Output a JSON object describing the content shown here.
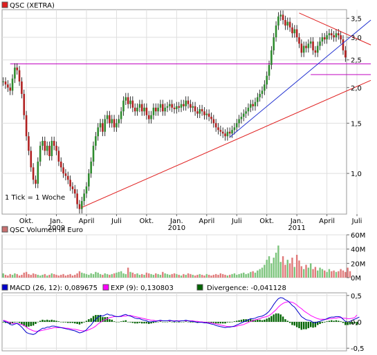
{
  "colors": {
    "panel_border": "#9a9a9a",
    "grid": "#dedede",
    "candle_up": "#2e8b2e",
    "candle_down": "#b02020",
    "wick": "#000000",
    "trend_red": "#e02020",
    "trend_blue": "#2030d0",
    "support_magenta": "#c000c0",
    "vol_up": "#7cc47c",
    "vol_down": "#e07a7a",
    "macd_line": "#0000cc",
    "exp_line": "#ff00ff",
    "divergence": "#006400"
  },
  "chart_data": [
    {
      "type": "candlestick",
      "title": "QSC (XETRA)",
      "legend_color": "#e02020",
      "note": "1 Tick = 1 Woche",
      "ylim": [
        0.72,
        3.75
      ],
      "yscale": "log",
      "y_ticks": [
        "3,5",
        "3,0",
        "2,5",
        "2,0",
        "1,5",
        "1,0"
      ],
      "y_tick_values": [
        3.5,
        3.0,
        2.5,
        2.0,
        1.5,
        1.0
      ],
      "x_ticks": [
        {
          "label": "Okt.",
          "year": "",
          "week": 10
        },
        {
          "label": "Jan.",
          "year": "2009",
          "week": 23
        },
        {
          "label": "April",
          "year": "",
          "week": 36
        },
        {
          "label": "Juli",
          "year": "",
          "week": 49
        },
        {
          "label": "Okt.",
          "year": "",
          "week": 62
        },
        {
          "label": "Jan.",
          "year": "2010",
          "week": 75
        },
        {
          "label": "April",
          "year": "",
          "week": 88
        },
        {
          "label": "Juli",
          "year": "",
          "week": 101
        },
        {
          "label": "Okt.",
          "year": "",
          "week": 114
        },
        {
          "label": "Jan.",
          "year": "2011",
          "week": 127
        },
        {
          "label": "April",
          "year": "",
          "week": 140
        },
        {
          "label": "Juli",
          "year": "",
          "week": 153
        }
      ],
      "weekly_close": [
        2.1,
        2.05,
        2.0,
        1.95,
        2.15,
        2.35,
        2.3,
        2.1,
        1.9,
        1.6,
        1.35,
        1.2,
        1.05,
        0.95,
        0.92,
        1.1,
        1.25,
        1.3,
        1.2,
        1.25,
        1.15,
        1.3,
        1.25,
        1.2,
        1.1,
        1.05,
        1.0,
        0.98,
        0.95,
        0.9,
        0.88,
        0.85,
        0.78,
        0.75,
        0.8,
        0.85,
        0.9,
        1.0,
        1.1,
        1.25,
        1.35,
        1.45,
        1.5,
        1.4,
        1.55,
        1.6,
        1.5,
        1.55,
        1.45,
        1.5,
        1.55,
        1.65,
        1.8,
        1.85,
        1.75,
        1.8,
        1.7,
        1.65,
        1.7,
        1.75,
        1.65,
        1.7,
        1.6,
        1.55,
        1.6,
        1.7,
        1.65,
        1.7,
        1.75,
        1.65,
        1.7,
        1.72,
        1.75,
        1.7,
        1.68,
        1.72,
        1.7,
        1.75,
        1.72,
        1.8,
        1.75,
        1.7,
        1.72,
        1.65,
        1.62,
        1.68,
        1.65,
        1.6,
        1.62,
        1.58,
        1.55,
        1.5,
        1.45,
        1.42,
        1.4,
        1.38,
        1.35,
        1.4,
        1.38,
        1.42,
        1.45,
        1.5,
        1.55,
        1.58,
        1.62,
        1.65,
        1.7,
        1.75,
        1.72,
        1.78,
        1.85,
        1.9,
        1.95,
        2.05,
        2.2,
        2.4,
        2.7,
        3.0,
        3.3,
        3.55,
        3.6,
        3.45,
        3.3,
        3.4,
        3.25,
        3.1,
        3.2,
        3.0,
        2.85,
        2.65,
        2.8,
        2.75,
        2.85,
        2.9,
        2.7,
        2.65,
        2.8,
        2.9,
        3.0,
        2.95,
        3.05,
        3.1,
        3.05,
        3.0,
        3.1,
        3.05,
        2.95,
        2.7,
        2.55
      ],
      "support_line": {
        "value": 2.42,
        "from_week": 3,
        "to_week": 159,
        "label": ""
      },
      "support_line_2": {
        "value": 2.22,
        "from_week": 133,
        "to_week": 159
      },
      "trend_lines": [
        {
          "color": "red",
          "from": {
            "week": 34,
            "value": 0.76
          },
          "to": {
            "week": 159,
            "value": 2.12
          }
        },
        {
          "color": "red",
          "from": {
            "week": 128,
            "value": 3.65
          },
          "to": {
            "week": 159,
            "value": 2.82
          }
        },
        {
          "color": "blue",
          "from": {
            "week": 98,
            "value": 1.34
          },
          "to": {
            "week": 159,
            "value": 3.45
          }
        }
      ]
    },
    {
      "type": "bar",
      "title": "QSC Volumen in Euro",
      "legend_color": "#c87070",
      "y_ticks": [
        "60M",
        "40M",
        "20M",
        "0M"
      ],
      "y_tick_values": [
        60,
        40,
        20,
        0
      ],
      "ylim": [
        0,
        60
      ],
      "unit": "M",
      "weekly_volume": [
        6,
        4,
        3,
        5,
        4,
        6,
        5,
        3,
        4,
        7,
        8,
        5,
        4,
        6,
        5,
        4,
        3,
        4,
        5,
        3,
        4,
        6,
        5,
        4,
        3,
        4,
        5,
        3,
        4,
        5,
        3,
        4,
        6,
        9,
        7,
        6,
        5,
        4,
        6,
        5,
        8,
        7,
        5,
        4,
        6,
        5,
        4,
        5,
        6,
        7,
        8,
        9,
        6,
        5,
        14,
        8,
        7,
        5,
        6,
        4,
        5,
        4,
        7,
        6,
        5,
        4,
        6,
        5,
        4,
        8,
        6,
        5,
        4,
        5,
        6,
        5,
        4,
        3,
        5,
        4,
        6,
        5,
        4,
        3,
        4,
        5,
        4,
        3,
        5,
        4,
        3,
        4,
        5,
        4,
        6,
        5,
        4,
        3,
        4,
        5,
        6,
        4,
        5,
        6,
        7,
        5,
        6,
        8,
        9,
        7,
        10,
        12,
        14,
        18,
        25,
        30,
        20,
        28,
        35,
        45,
        22,
        30,
        18,
        25,
        20,
        28,
        15,
        32,
        24,
        16,
        12,
        18,
        14,
        20,
        12,
        15,
        10,
        14,
        12,
        10,
        8,
        12,
        9,
        10,
        8,
        9,
        12,
        10,
        8,
        14,
        9
      ]
    },
    {
      "type": "line",
      "title": "MACD",
      "legend": [
        {
          "label": "MACD (26, 12): 0,089675",
          "color": "#0000cc"
        },
        {
          "label": "EXP (9): 0,130803",
          "color": "#ff00ff"
        },
        {
          "label": "Divergence: -0,041128",
          "color": "#006400"
        }
      ],
      "y_ticks": [
        "0,5",
        "0,0",
        "-0,5"
      ],
      "y_tick_values": [
        0.5,
        0.0,
        -0.5
      ],
      "ylim": [
        -0.55,
        0.55
      ],
      "macd": [
        0.02,
        0.0,
        -0.02,
        -0.05,
        -0.06,
        -0.04,
        -0.03,
        -0.06,
        -0.1,
        -0.15,
        -0.2,
        -0.22,
        -0.23,
        -0.24,
        -0.22,
        -0.18,
        -0.15,
        -0.12,
        -0.12,
        -0.1,
        -0.1,
        -0.08,
        -0.08,
        -0.09,
        -0.1,
        -0.11,
        -0.12,
        -0.13,
        -0.14,
        -0.15,
        -0.16,
        -0.17,
        -0.19,
        -0.21,
        -0.2,
        -0.18,
        -0.15,
        -0.1,
        -0.06,
        0.0,
        0.05,
        0.09,
        0.12,
        0.11,
        0.13,
        0.15,
        0.13,
        0.13,
        0.11,
        0.1,
        0.1,
        0.11,
        0.13,
        0.14,
        0.12,
        0.11,
        0.09,
        0.07,
        0.06,
        0.06,
        0.04,
        0.03,
        0.02,
        0.0,
        0.0,
        0.01,
        0.01,
        0.02,
        0.03,
        0.02,
        0.02,
        0.02,
        0.03,
        0.02,
        0.01,
        0.02,
        0.01,
        0.02,
        0.02,
        0.03,
        0.02,
        0.01,
        0.01,
        0.0,
        -0.01,
        -0.01,
        -0.01,
        -0.02,
        -0.02,
        -0.03,
        -0.04,
        -0.05,
        -0.07,
        -0.08,
        -0.09,
        -0.1,
        -0.11,
        -0.1,
        -0.1,
        -0.09,
        -0.08,
        -0.06,
        -0.04,
        -0.02,
        0.0,
        0.02,
        0.04,
        0.06,
        0.06,
        0.07,
        0.09,
        0.1,
        0.11,
        0.13,
        0.16,
        0.2,
        0.26,
        0.33,
        0.39,
        0.44,
        0.46,
        0.45,
        0.42,
        0.4,
        0.36,
        0.31,
        0.28,
        0.22,
        0.16,
        0.1,
        0.07,
        0.04,
        0.03,
        0.02,
        -0.01,
        -0.02,
        0.0,
        0.01,
        0.03,
        0.04,
        0.06,
        0.08,
        0.09,
        0.09,
        0.1,
        0.1,
        0.09,
        0.05,
        0.01,
        0.0,
        0.01,
        0.03,
        0.05,
        0.07,
        0.09
      ],
      "exp": [
        0.03,
        0.02,
        0.0,
        -0.01,
        -0.03,
        -0.03,
        -0.03,
        -0.04,
        -0.05,
        -0.07,
        -0.1,
        -0.13,
        -0.15,
        -0.17,
        -0.18,
        -0.18,
        -0.17,
        -0.16,
        -0.15,
        -0.14,
        -0.13,
        -0.12,
        -0.11,
        -0.11,
        -0.11,
        -0.11,
        -0.11,
        -0.12,
        -0.12,
        -0.13,
        -0.14,
        -0.14,
        -0.15,
        -0.16,
        -0.17,
        -0.17,
        -0.17,
        -0.15,
        -0.13,
        -0.11,
        -0.08,
        -0.04,
        -0.01,
        0.02,
        0.04,
        0.06,
        0.08,
        0.09,
        0.1,
        0.1,
        0.1,
        0.1,
        0.11,
        0.11,
        0.12,
        0.12,
        0.11,
        0.1,
        0.09,
        0.08,
        0.07,
        0.06,
        0.05,
        0.04,
        0.03,
        0.03,
        0.02,
        0.02,
        0.02,
        0.02,
        0.02,
        0.02,
        0.02,
        0.02,
        0.02,
        0.02,
        0.02,
        0.02,
        0.02,
        0.02,
        0.02,
        0.02,
        0.02,
        0.01,
        0.01,
        0.0,
        0.0,
        -0.01,
        -0.01,
        -0.02,
        -0.02,
        -0.03,
        -0.04,
        -0.05,
        -0.06,
        -0.07,
        -0.08,
        -0.09,
        -0.09,
        -0.09,
        -0.09,
        -0.08,
        -0.07,
        -0.06,
        -0.05,
        -0.03,
        -0.01,
        0.01,
        0.02,
        0.04,
        0.05,
        0.06,
        0.08,
        0.09,
        0.1,
        0.12,
        0.15,
        0.19,
        0.23,
        0.28,
        0.32,
        0.35,
        0.37,
        0.38,
        0.38,
        0.37,
        0.35,
        0.32,
        0.28,
        0.25,
        0.21,
        0.18,
        0.15,
        0.12,
        0.1,
        0.08,
        0.06,
        0.05,
        0.05,
        0.05,
        0.05,
        0.06,
        0.06,
        0.07,
        0.07,
        0.08,
        0.08,
        0.07,
        0.07,
        0.06,
        0.06,
        0.07,
        0.08,
        0.13
      ]
    }
  ]
}
